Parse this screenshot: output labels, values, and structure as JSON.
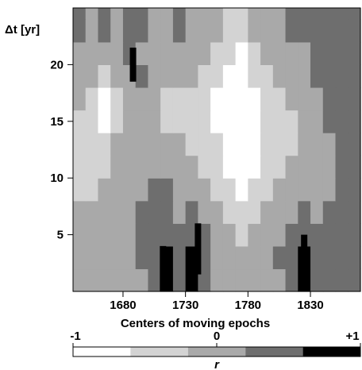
{
  "chart_data": {
    "type": "heatmap",
    "title": "",
    "xlabel": "Centers of moving epochs",
    "ylabel": "Δt [yr]",
    "x_range": [
      1640,
      1870
    ],
    "y_range": [
      0,
      25
    ],
    "x_ticks": [
      {
        "value": 1680,
        "label": "1680"
      },
      {
        "value": 1730,
        "label": "1730"
      },
      {
        "value": 1780,
        "label": "1780"
      },
      {
        "value": 1830,
        "label": "1830"
      }
    ],
    "y_ticks": [
      {
        "value": 5,
        "label": "5"
      },
      {
        "value": 10,
        "label": "10"
      },
      {
        "value": 15,
        "label": "15"
      },
      {
        "value": 20,
        "label": "20"
      }
    ],
    "colorbar": {
      "label": "r",
      "range": [
        -1,
        1
      ],
      "tick_labels": [
        {
          "value": -1,
          "label": "-1"
        },
        {
          "value": 0,
          "label": "0"
        },
        {
          "value": 1,
          "label": "+1"
        }
      ],
      "levels": [
        {
          "from": -1.0,
          "to": -0.6,
          "color": "#ffffff"
        },
        {
          "from": -0.6,
          "to": -0.2,
          "color": "#d3d3d3"
        },
        {
          "from": -0.2,
          "to": 0.2,
          "color": "#a9a9a9"
        },
        {
          "from": 0.2,
          "to": 0.6,
          "color": "#6e6e6e"
        },
        {
          "from": 0.6,
          "to": 1.0,
          "color": "#000000"
        }
      ]
    },
    "column_centers": [
      1645,
      1655,
      1665,
      1675,
      1685,
      1695,
      1705,
      1715,
      1725,
      1735,
      1745,
      1755,
      1765,
      1775,
      1785,
      1795,
      1805,
      1815,
      1825,
      1835,
      1845,
      1855,
      1865
    ],
    "row_centers": [
      1,
      3,
      5,
      7,
      9,
      11,
      13,
      15,
      17,
      19,
      21,
      23
    ],
    "grid": [
      [
        2,
        2,
        2,
        2,
        2,
        2,
        3,
        4,
        3,
        4,
        3,
        2,
        2,
        2,
        2,
        2,
        2,
        3,
        4,
        3,
        3,
        3,
        3
      ],
      [
        2,
        2,
        2,
        2,
        2,
        3,
        3,
        4,
        3,
        4,
        3,
        2,
        2,
        2,
        2,
        2,
        3,
        3,
        4,
        3,
        3,
        3,
        3
      ],
      [
        2,
        2,
        2,
        2,
        2,
        3,
        3,
        3,
        3,
        3,
        3,
        2,
        2,
        1,
        2,
        2,
        2,
        3,
        3,
        3,
        3,
        3,
        3
      ],
      [
        2,
        2,
        2,
        2,
        2,
        3,
        3,
        3,
        2,
        3,
        2,
        2,
        1,
        1,
        1,
        2,
        2,
        2,
        3,
        2,
        3,
        3,
        3
      ],
      [
        1,
        1,
        2,
        2,
        2,
        2,
        3,
        3,
        2,
        2,
        2,
        1,
        1,
        0,
        1,
        1,
        2,
        2,
        2,
        2,
        2,
        3,
        3
      ],
      [
        1,
        1,
        1,
        2,
        2,
        2,
        2,
        2,
        2,
        2,
        1,
        1,
        0,
        0,
        0,
        1,
        1,
        2,
        2,
        2,
        2,
        3,
        3
      ],
      [
        1,
        1,
        1,
        2,
        2,
        2,
        2,
        2,
        2,
        1,
        1,
        1,
        0,
        0,
        0,
        1,
        1,
        1,
        2,
        2,
        2,
        3,
        3
      ],
      [
        1,
        1,
        0,
        1,
        2,
        2,
        2,
        1,
        1,
        1,
        1,
        0,
        0,
        0,
        0,
        1,
        1,
        1,
        2,
        2,
        3,
        3,
        3
      ],
      [
        2,
        1,
        0,
        1,
        2,
        2,
        2,
        1,
        1,
        1,
        1,
        0,
        0,
        0,
        0,
        1,
        1,
        2,
        2,
        2,
        3,
        3,
        3
      ],
      [
        2,
        2,
        1,
        2,
        2,
        3,
        2,
        2,
        2,
        2,
        1,
        1,
        0,
        0,
        1,
        1,
        2,
        2,
        2,
        3,
        3,
        3,
        3
      ],
      [
        2,
        2,
        2,
        2,
        3,
        2,
        2,
        2,
        2,
        2,
        2,
        1,
        1,
        0,
        1,
        2,
        2,
        2,
        2,
        3,
        3,
        3,
        3
      ],
      [
        3,
        2,
        3,
        2,
        3,
        3,
        2,
        2,
        3,
        2,
        2,
        2,
        1,
        1,
        2,
        2,
        2,
        3,
        3,
        3,
        3,
        3,
        3
      ]
    ],
    "dark_features": [
      {
        "x": 1712,
        "y_from": 0,
        "y_to": 4
      },
      {
        "x": 1740,
        "y_from": 1.5,
        "y_to": 6
      },
      {
        "x": 1825,
        "y_from": 0,
        "y_to": 5
      },
      {
        "x": 1688,
        "y_from": 18.5,
        "y_to": 21.5
      }
    ]
  }
}
